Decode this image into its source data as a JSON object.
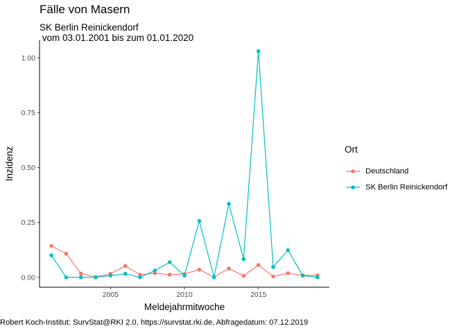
{
  "chart_data": {
    "type": "line",
    "title": "Fälle von Masern",
    "subtitle": "SK Berlin Reinickendorf\n vom 03.01.2001 bis zum 01.01.2020",
    "xlabel": "Meldejahrmitwoche",
    "ylabel": "Inzidenz",
    "caption": "Robert Koch-Institut: SurvStat@RKI 2.0, https://survstat.rki.de, Abfragedatum: 07.12.2019",
    "xlim": [
      2000.2,
      2019.8
    ],
    "ylim": [
      -0.045,
      1.08
    ],
    "x_ticks": [
      2005,
      2010,
      2015
    ],
    "y_ticks": [
      0,
      0.25,
      0.5,
      0.75,
      1.0
    ],
    "y_tick_labels": [
      "0.00",
      "0.25",
      "0.50",
      "0.75",
      "1.00"
    ],
    "grid": false,
    "legend": {
      "title": "Ort",
      "position": "right"
    },
    "x": [
      2001,
      2002,
      2003,
      2004,
      2005,
      2006,
      2007,
      2008,
      2009,
      2010,
      2011,
      2012,
      2013,
      2014,
      2015,
      2016,
      2017,
      2018,
      2019
    ],
    "series": [
      {
        "name": "Deutschland",
        "color": "#F8766D",
        "values": [
          0.143,
          0.108,
          0.017,
          0.002,
          0.016,
          0.052,
          0.012,
          0.019,
          0.012,
          0.015,
          0.035,
          0.002,
          0.04,
          0.007,
          0.056,
          0.004,
          0.019,
          0.009,
          0.009
        ]
      },
      {
        "name": "SK Berlin Reinickendorf",
        "color": "#00BFC4",
        "values": [
          0.1,
          0.0,
          0.0,
          0.0,
          0.008,
          0.016,
          0.0,
          0.031,
          0.069,
          0.008,
          0.257,
          0.0,
          0.335,
          0.083,
          1.03,
          0.047,
          0.124,
          0.008,
          0.0
        ]
      }
    ]
  }
}
